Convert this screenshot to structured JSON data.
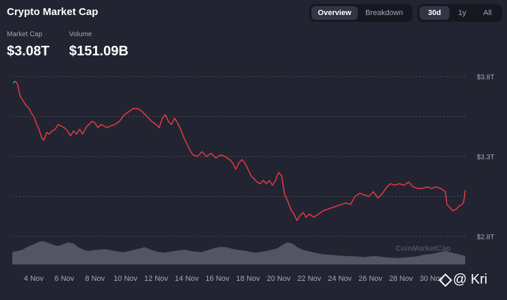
{
  "header": {
    "title": "Crypto Market Cap",
    "view_tabs": [
      {
        "label": "Overview",
        "active": true
      },
      {
        "label": "Breakdown",
        "active": false
      }
    ],
    "range_tabs": [
      {
        "label": "30d",
        "active": true
      },
      {
        "label": "1y",
        "active": false
      },
      {
        "label": "All",
        "active": false
      }
    ]
  },
  "stats": {
    "market_cap_label": "Market Cap",
    "market_cap_value": "$3.08T",
    "volume_label": "Volume",
    "volume_value": "$151.09B"
  },
  "watermark": "CoinMarketCap",
  "badge_text": "@ Kri",
  "colors": {
    "line": "#ea3943",
    "line_start": "#16c784",
    "grid": "#4a4f5e",
    "volume": "#5a5e6c",
    "background": "#222531"
  },
  "chart_data": {
    "type": "line",
    "xlabel": "",
    "ylabel": "",
    "x_ticks": [
      "4 Nov",
      "6 Nov",
      "8 Nov",
      "10 Nov",
      "12 Nov",
      "14 Nov",
      "16 Nov",
      "18 Nov",
      "20 Nov",
      "22 Nov",
      "24 Nov",
      "26 Nov",
      "28 Nov",
      "30 Nov"
    ],
    "y_ticks": [
      "$3.8T",
      "$3.3T",
      "$2.8T"
    ],
    "ylim": [
      2.8,
      3.8
    ],
    "x_range_days": [
      2.6,
      32.2
    ],
    "grid": true,
    "series": [
      {
        "values": [
          [
            2.65,
            3.76
          ],
          [
            2.8,
            3.77
          ],
          [
            2.95,
            3.75
          ],
          [
            3.1,
            3.68
          ],
          [
            3.3,
            3.65
          ],
          [
            3.5,
            3.62
          ],
          [
            3.7,
            3.6
          ],
          [
            3.85,
            3.57
          ],
          [
            4.0,
            3.55
          ],
          [
            4.2,
            3.5
          ],
          [
            4.35,
            3.47
          ],
          [
            4.5,
            3.42
          ],
          [
            4.65,
            3.4
          ],
          [
            4.85,
            3.45
          ],
          [
            5.0,
            3.44
          ],
          [
            5.2,
            3.46
          ],
          [
            5.4,
            3.47
          ],
          [
            5.6,
            3.5
          ],
          [
            5.8,
            3.49
          ],
          [
            6.0,
            3.48
          ],
          [
            6.2,
            3.46
          ],
          [
            6.4,
            3.43
          ],
          [
            6.6,
            3.46
          ],
          [
            6.8,
            3.44
          ],
          [
            7.0,
            3.47
          ],
          [
            7.2,
            3.44
          ],
          [
            7.4,
            3.48
          ],
          [
            7.6,
            3.5
          ],
          [
            7.8,
            3.52
          ],
          [
            8.0,
            3.51
          ],
          [
            8.2,
            3.48
          ],
          [
            8.4,
            3.5
          ],
          [
            8.6,
            3.49
          ],
          [
            8.8,
            3.48
          ],
          [
            9.0,
            3.49
          ],
          [
            9.3,
            3.5
          ],
          [
            9.6,
            3.52
          ],
          [
            9.9,
            3.56
          ],
          [
            10.2,
            3.58
          ],
          [
            10.5,
            3.6
          ],
          [
            10.8,
            3.6
          ],
          [
            11.1,
            3.58
          ],
          [
            11.4,
            3.55
          ],
          [
            11.7,
            3.52
          ],
          [
            12.0,
            3.5
          ],
          [
            12.2,
            3.48
          ],
          [
            12.4,
            3.54
          ],
          [
            12.6,
            3.56
          ],
          [
            12.8,
            3.52
          ],
          [
            13.0,
            3.5
          ],
          [
            13.2,
            3.54
          ],
          [
            13.4,
            3.51
          ],
          [
            13.6,
            3.47
          ],
          [
            13.8,
            3.42
          ],
          [
            14.0,
            3.38
          ],
          [
            14.2,
            3.34
          ],
          [
            14.4,
            3.31
          ],
          [
            14.7,
            3.3
          ],
          [
            15.0,
            3.33
          ],
          [
            15.3,
            3.3
          ],
          [
            15.6,
            3.32
          ],
          [
            15.9,
            3.29
          ],
          [
            16.2,
            3.31
          ],
          [
            16.5,
            3.3
          ],
          [
            16.8,
            3.28
          ],
          [
            17.0,
            3.26
          ],
          [
            17.2,
            3.22
          ],
          [
            17.4,
            3.26
          ],
          [
            17.6,
            3.28
          ],
          [
            17.8,
            3.26
          ],
          [
            18.0,
            3.22
          ],
          [
            18.2,
            3.18
          ],
          [
            18.4,
            3.16
          ],
          [
            18.6,
            3.14
          ],
          [
            18.8,
            3.13
          ],
          [
            19.0,
            3.15
          ],
          [
            19.2,
            3.13
          ],
          [
            19.4,
            3.15
          ],
          [
            19.6,
            3.12
          ],
          [
            19.8,
            3.15
          ],
          [
            20.0,
            3.2
          ],
          [
            20.2,
            3.18
          ],
          [
            20.4,
            3.06
          ],
          [
            20.6,
            3.02
          ],
          [
            20.8,
            2.97
          ],
          [
            21.0,
            2.94
          ],
          [
            21.2,
            2.9
          ],
          [
            21.4,
            2.93
          ],
          [
            21.6,
            2.95
          ],
          [
            21.8,
            2.92
          ],
          [
            22.0,
            2.94
          ],
          [
            22.3,
            2.92
          ],
          [
            22.6,
            2.94
          ],
          [
            22.9,
            2.96
          ],
          [
            23.2,
            2.97
          ],
          [
            23.5,
            2.98
          ],
          [
            23.8,
            2.99
          ],
          [
            24.1,
            3.0
          ],
          [
            24.4,
            3.01
          ],
          [
            24.7,
            3.0
          ],
          [
            25.0,
            3.05
          ],
          [
            25.3,
            3.07
          ],
          [
            25.6,
            3.06
          ],
          [
            25.9,
            3.05
          ],
          [
            26.2,
            3.08
          ],
          [
            26.5,
            3.04
          ],
          [
            26.8,
            3.07
          ],
          [
            27.0,
            3.1
          ],
          [
            27.3,
            3.13
          ],
          [
            27.6,
            3.12
          ],
          [
            27.9,
            3.13
          ],
          [
            28.2,
            3.12
          ],
          [
            28.5,
            3.14
          ],
          [
            28.8,
            3.11
          ],
          [
            29.1,
            3.1
          ],
          [
            29.4,
            3.1
          ],
          [
            29.7,
            3.11
          ],
          [
            30.0,
            3.1
          ],
          [
            30.3,
            3.11
          ],
          [
            30.6,
            3.1
          ],
          [
            30.9,
            3.08
          ],
          [
            31.0,
            3.0
          ],
          [
            31.2,
            2.98
          ],
          [
            31.4,
            2.96
          ],
          [
            31.6,
            2.97
          ],
          [
            31.8,
            2.99
          ],
          [
            32.0,
            3.0
          ],
          [
            32.1,
            3.02
          ],
          [
            32.2,
            3.09
          ]
        ]
      }
    ],
    "volume_relative": [
      0.5,
      0.55,
      0.6,
      0.72,
      0.8,
      0.9,
      0.95,
      0.88,
      0.8,
      0.75,
      0.82,
      0.9,
      0.85,
      0.7,
      0.6,
      0.55,
      0.58,
      0.6,
      0.62,
      0.6,
      0.55,
      0.52,
      0.5,
      0.55,
      0.6,
      0.65,
      0.7,
      0.62,
      0.55,
      0.5,
      0.48,
      0.52,
      0.55,
      0.58,
      0.6,
      0.55,
      0.52,
      0.5,
      0.55,
      0.62,
      0.68,
      0.72,
      0.7,
      0.65,
      0.6,
      0.58,
      0.55,
      0.5,
      0.48,
      0.52,
      0.55,
      0.6,
      0.65,
      0.78,
      0.9,
      0.85,
      0.7,
      0.6,
      0.55,
      0.5,
      0.45,
      0.42,
      0.4,
      0.38,
      0.36,
      0.35,
      0.34,
      0.33,
      0.32,
      0.3,
      0.32,
      0.34,
      0.33,
      0.3,
      0.28,
      0.27,
      0.26,
      0.28,
      0.3,
      0.32,
      0.35,
      0.4,
      0.42,
      0.45,
      0.5,
      0.55,
      0.5,
      0.45,
      0.4,
      0.35
    ]
  }
}
